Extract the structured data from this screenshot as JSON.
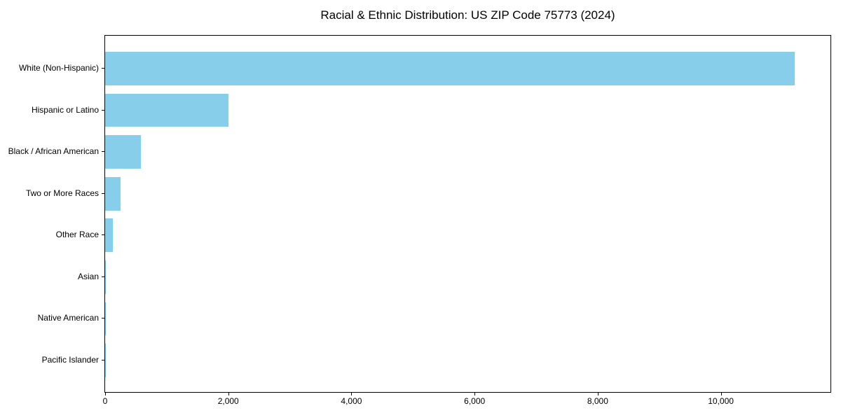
{
  "chart_data": {
    "type": "bar",
    "orientation": "horizontal",
    "title": "Racial & Ethnic Distribution: US ZIP Code 75773 (2024)",
    "categories": [
      "White (Non-Hispanic)",
      "Hispanic or Latino",
      "Black / African American",
      "Two or More Races",
      "Other Race",
      "Asian",
      "Native American",
      "Pacific Islander"
    ],
    "values": [
      11200,
      2000,
      580,
      255,
      130,
      12,
      6,
      2
    ],
    "xlabel": "",
    "ylabel": "",
    "xlim": [
      0,
      11780
    ],
    "x_ticks": [
      0,
      2000,
      4000,
      6000,
      8000,
      10000
    ],
    "x_tick_labels": [
      "0",
      "2,000",
      "4,000",
      "6,000",
      "8,000",
      "10,000"
    ],
    "grid": false,
    "legend": null,
    "bar_color": "#87CEEB",
    "spine_color": "#000000",
    "background_color": "#FFFFFF"
  }
}
